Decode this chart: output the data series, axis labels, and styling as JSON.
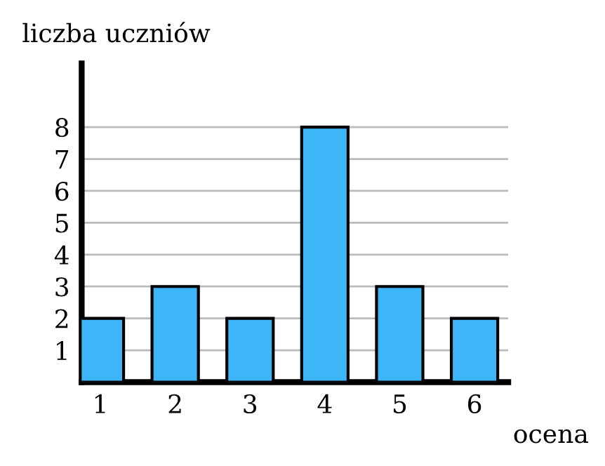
{
  "chart_data": {
    "type": "bar",
    "xlabel": "ocena",
    "ylabel": "liczba uczniów",
    "categories": [
      "1",
      "2",
      "3",
      "4",
      "5",
      "6"
    ],
    "values": [
      2,
      3,
      2,
      8,
      3,
      2
    ],
    "color": "#3db5f7",
    "ylim": [
      0,
      10
    ],
    "yticks": [
      1,
      2,
      3,
      4,
      5,
      6,
      7,
      8
    ],
    "grid": "y",
    "legend": false
  }
}
